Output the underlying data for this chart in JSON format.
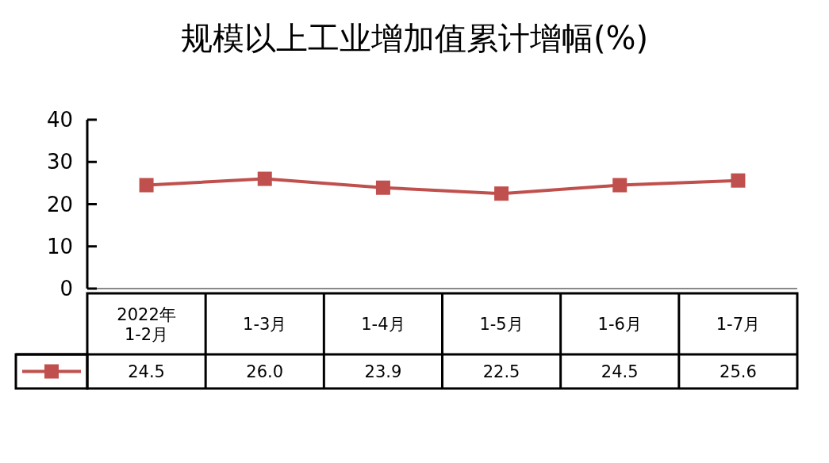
{
  "chart_data": {
    "type": "line",
    "title": "规模以上工业增加值累计增幅(%)",
    "categories": [
      "2022年\n1-2月",
      "1-3月",
      "1-4月",
      "1-5月",
      "1-6月",
      "1-7月"
    ],
    "series": [
      {
        "color": "#c0504d",
        "values": [
          24.5,
          26.0,
          23.9,
          22.5,
          24.5,
          25.6
        ],
        "value_labels": [
          "24.5",
          "26.0",
          "23.9",
          "22.5",
          "24.5",
          "25.6"
        ]
      }
    ],
    "ylim": [
      0,
      40
    ],
    "yticks": [
      0,
      10,
      20,
      30,
      40
    ],
    "grid": false,
    "marker": "square",
    "line_style": "solid"
  }
}
